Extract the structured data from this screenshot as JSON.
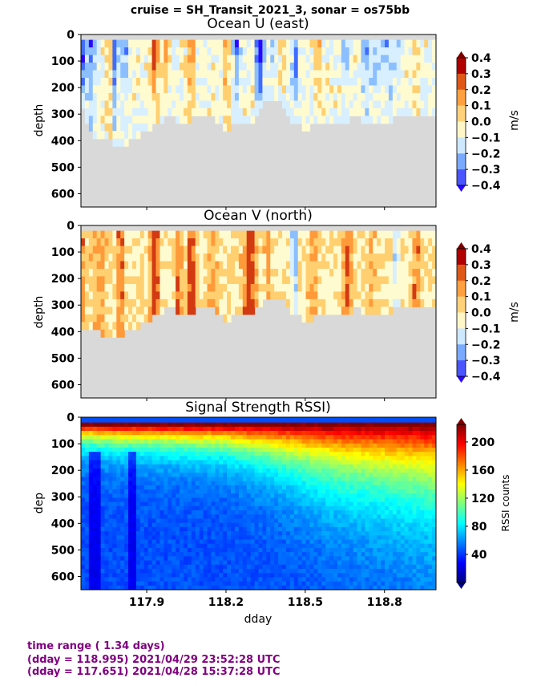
{
  "suptitle": "cruise = SH_Transit_2021_3,  sonar = os75bb",
  "xlabel": "dday",
  "xticks": [
    "117.9",
    "118.2",
    "118.5",
    "118.8"
  ],
  "footer": {
    "line1": "time range ( 1.34 days)",
    "line2": "(dday = 118.995) 2021/04/29 23:52:28 UTC",
    "line3": "(dday = 117.651) 2021/04/28 15:37:28 UTC"
  },
  "colors": {
    "no_data": "#d9d9d9",
    "footer_text": "#800080"
  },
  "chart_data": [
    {
      "type": "heatmap",
      "title": "Ocean U (east)",
      "xlabel": "",
      "ylabel": "depth",
      "xlim": [
        117.651,
        118.995
      ],
      "ylim": [
        650,
        0
      ],
      "yticks": [
        0,
        100,
        200,
        300,
        400,
        500,
        600
      ],
      "colorbar": {
        "label": "m/s",
        "ticks": [
          "0.4",
          "0.3",
          "0.2",
          "0.1",
          "0.0",
          "−0.1",
          "−0.2",
          "−0.3",
          "−0.4"
        ],
        "min": -0.4,
        "max": 0.4
      },
      "bottom_depth": [
        {
          "x": 117.65,
          "depth": 250
        },
        {
          "x": 117.7,
          "depth": 380
        },
        {
          "x": 117.75,
          "depth": 370
        },
        {
          "x": 117.8,
          "depth": 420
        },
        {
          "x": 117.85,
          "depth": 370
        },
        {
          "x": 117.9,
          "depth": 360
        },
        {
          "x": 117.95,
          "depth": 310
        },
        {
          "x": 118.0,
          "depth": 300
        },
        {
          "x": 118.05,
          "depth": 320
        },
        {
          "x": 118.1,
          "depth": 290
        },
        {
          "x": 118.15,
          "depth": 305
        },
        {
          "x": 118.2,
          "depth": 340
        },
        {
          "x": 118.25,
          "depth": 320
        },
        {
          "x": 118.3,
          "depth": 330
        },
        {
          "x": 118.35,
          "depth": 240
        },
        {
          "x": 118.4,
          "depth": 230
        },
        {
          "x": 118.45,
          "depth": 310
        },
        {
          "x": 118.5,
          "depth": 340
        },
        {
          "x": 118.55,
          "depth": 320
        },
        {
          "x": 118.6,
          "depth": 325
        },
        {
          "x": 118.65,
          "depth": 310
        },
        {
          "x": 118.7,
          "depth": 300
        },
        {
          "x": 118.75,
          "depth": 325
        },
        {
          "x": 118.8,
          "depth": 320
        },
        {
          "x": 118.85,
          "depth": 300
        },
        {
          "x": 118.9,
          "depth": 290
        },
        {
          "x": 118.95,
          "depth": 280
        },
        {
          "x": 119.0,
          "depth": 280
        }
      ],
      "features": [
        {
          "x": 117.66,
          "width": 0.01,
          "value": -0.35
        },
        {
          "x": 117.69,
          "width": 0.018,
          "value": -0.25
        },
        {
          "x": 117.76,
          "width": 0.015,
          "value": 0.22
        },
        {
          "x": 117.78,
          "width": 0.012,
          "value": -0.3
        },
        {
          "x": 117.82,
          "width": 0.015,
          "value": -0.18
        },
        {
          "x": 117.93,
          "width": 0.015,
          "value": 0.4
        },
        {
          "x": 117.97,
          "width": 0.012,
          "value": 0.25
        },
        {
          "x": 118.07,
          "width": 0.015,
          "value": 0.4
        },
        {
          "x": 118.2,
          "width": 0.012,
          "value": 0.25
        },
        {
          "x": 118.24,
          "width": 0.015,
          "value": -0.25
        },
        {
          "x": 118.33,
          "width": 0.018,
          "value": -0.4
        },
        {
          "x": 118.38,
          "width": 0.015,
          "value": -0.15
        },
        {
          "x": 118.42,
          "width": 0.01,
          "value": 0.15
        },
        {
          "x": 118.46,
          "width": 0.01,
          "value": -0.3
        },
        {
          "x": 118.55,
          "width": 0.012,
          "value": 0.2
        },
        {
          "x": 118.65,
          "width": 0.012,
          "value": -0.2
        },
        {
          "x": 118.73,
          "width": 0.015,
          "value": -0.22
        },
        {
          "x": 118.8,
          "width": 0.05,
          "value": -0.18
        },
        {
          "x": 118.92,
          "width": 0.015,
          "value": 0.15
        }
      ],
      "background_value": 0.03
    },
    {
      "type": "heatmap",
      "title": "Ocean V (north)",
      "xlabel": "",
      "ylabel": "depth",
      "xlim": [
        117.651,
        118.995
      ],
      "ylim": [
        650,
        0
      ],
      "yticks": [
        0,
        100,
        200,
        300,
        400,
        500,
        600
      ],
      "colorbar": {
        "label": "m/s",
        "ticks": [
          "0.4",
          "0.3",
          "0.2",
          "0.1",
          "0.0",
          "−0.1",
          "−0.2",
          "−0.3",
          "−0.4"
        ],
        "min": -0.4,
        "max": 0.4
      },
      "bottom_depth": [
        {
          "x": 117.65,
          "depth": 380
        },
        {
          "x": 117.7,
          "depth": 380
        },
        {
          "x": 117.75,
          "depth": 410
        },
        {
          "x": 117.8,
          "depth": 400
        },
        {
          "x": 117.85,
          "depth": 370
        },
        {
          "x": 117.9,
          "depth": 360
        },
        {
          "x": 117.95,
          "depth": 310
        },
        {
          "x": 118.0,
          "depth": 300
        },
        {
          "x": 118.05,
          "depth": 330
        },
        {
          "x": 118.1,
          "depth": 300
        },
        {
          "x": 118.15,
          "depth": 305
        },
        {
          "x": 118.2,
          "depth": 340
        },
        {
          "x": 118.25,
          "depth": 330
        },
        {
          "x": 118.3,
          "depth": 330
        },
        {
          "x": 118.35,
          "depth": 250
        },
        {
          "x": 118.4,
          "depth": 250
        },
        {
          "x": 118.45,
          "depth": 310
        },
        {
          "x": 118.5,
          "depth": 340
        },
        {
          "x": 118.55,
          "depth": 330
        },
        {
          "x": 118.6,
          "depth": 330
        },
        {
          "x": 118.65,
          "depth": 315
        },
        {
          "x": 118.7,
          "depth": 300
        },
        {
          "x": 118.75,
          "depth": 330
        },
        {
          "x": 118.8,
          "depth": 320
        },
        {
          "x": 118.85,
          "depth": 300
        },
        {
          "x": 118.9,
          "depth": 290
        },
        {
          "x": 118.95,
          "depth": 285
        },
        {
          "x": 119.0,
          "depth": 280
        }
      ],
      "features": [
        {
          "x": 117.66,
          "width": 0.012,
          "value": 0.25
        },
        {
          "x": 117.72,
          "width": 0.03,
          "value": 0.22
        },
        {
          "x": 117.8,
          "width": 0.015,
          "value": 0.3
        },
        {
          "x": 117.93,
          "width": 0.018,
          "value": 0.4
        },
        {
          "x": 118.02,
          "width": 0.015,
          "value": 0.3
        },
        {
          "x": 118.07,
          "width": 0.015,
          "value": 0.4
        },
        {
          "x": 118.15,
          "width": 0.02,
          "value": 0.22
        },
        {
          "x": 118.29,
          "width": 0.025,
          "value": 0.4
        },
        {
          "x": 118.36,
          "width": 0.015,
          "value": 0.22
        },
        {
          "x": 118.46,
          "width": 0.012,
          "value": -0.3
        },
        {
          "x": 118.53,
          "width": 0.02,
          "value": 0.22
        },
        {
          "x": 118.66,
          "width": 0.02,
          "value": 0.3
        },
        {
          "x": 118.75,
          "width": 0.018,
          "value": 0.2
        },
        {
          "x": 118.84,
          "width": 0.012,
          "value": -0.15
        },
        {
          "x": 118.92,
          "width": 0.015,
          "value": 0.3
        }
      ],
      "background_value": 0.08
    },
    {
      "type": "heatmap",
      "title": "Signal Strength RSSI)",
      "xlabel": "dday",
      "ylabel": "dep",
      "xlim": [
        117.651,
        118.995
      ],
      "ylim": [
        650,
        0
      ],
      "yticks": [
        0,
        100,
        200,
        300,
        400,
        500,
        600
      ],
      "colorbar": {
        "label": "RSSI counts",
        "ticks": [
          "200",
          "160",
          "120",
          "80",
          "40"
        ],
        "min": 0,
        "max": 225
      },
      "surface_value": 225,
      "deep_value": 45,
      "decay_depth": [
        {
          "x": 117.65,
          "depth": 60
        },
        {
          "x": 117.8,
          "depth": 70
        },
        {
          "x": 118.0,
          "depth": 75
        },
        {
          "x": 118.2,
          "depth": 85
        },
        {
          "x": 118.4,
          "depth": 120
        },
        {
          "x": 118.6,
          "depth": 170
        },
        {
          "x": 118.8,
          "depth": 200
        },
        {
          "x": 119.0,
          "depth": 230
        }
      ],
      "low_streaks": [
        {
          "x": 117.7,
          "width": 0.04
        },
        {
          "x": 117.84,
          "width": 0.03
        }
      ]
    }
  ]
}
